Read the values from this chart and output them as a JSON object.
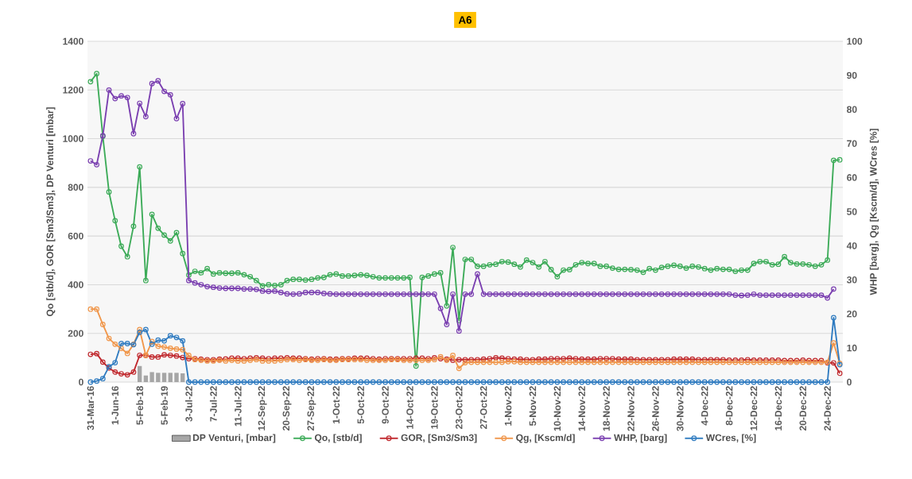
{
  "chart_data": {
    "type": "line",
    "title": "A6",
    "ylabel": "Qo [stb/d], GOR [Sm3/Sm3], DP Venturi [mbar]",
    "y2label": "WHP [barg], Qg [Kscm/d], WCres [%]",
    "categories": [
      "31-Mar-16",
      null,
      null,
      null,
      "1-Jun-16",
      null,
      null,
      null,
      "5-Feb-18",
      null,
      null,
      null,
      "5-Feb-19",
      null,
      null,
      null,
      "3-Jul-22",
      null,
      null,
      null,
      "7-Jul-22",
      null,
      null,
      null,
      "11-Jul-22",
      null,
      null,
      null,
      "12-Sep-22",
      null,
      null,
      null,
      "20-Sep-22",
      null,
      null,
      null,
      "27-Sep-22",
      null,
      null,
      null,
      "1-Oct-22",
      null,
      null,
      null,
      "5-Oct-22",
      null,
      null,
      null,
      "9-Oct-22",
      null,
      null,
      null,
      "14-Oct-22",
      null,
      null,
      null,
      "19-Oct-22",
      null,
      null,
      null,
      "23-Oct-22",
      null,
      null,
      null,
      "27-Oct-22",
      null,
      null,
      null,
      "1-Nov-22",
      null,
      null,
      null,
      "5-Nov-22",
      null,
      null,
      null,
      "10-Nov-22",
      null,
      null,
      null,
      "14-Nov-22",
      null,
      null,
      null,
      "18-Nov-22",
      null,
      null,
      null,
      "22-Nov-22",
      null,
      null,
      null,
      "26-Nov-22",
      null,
      null,
      null,
      "30-Nov-22",
      null,
      null,
      null,
      "4-Dec-22",
      null,
      null,
      null,
      "8-Dec-22",
      null,
      null,
      null,
      "12-Dec-22",
      null,
      null,
      null,
      "16-Dec-22",
      null,
      null,
      null,
      "20-Dec-22",
      null,
      null,
      null,
      "24-Dec-22",
      null,
      null
    ],
    "series": [
      {
        "name": "DP Venturi, [mbar]",
        "type": "bar",
        "color": "#a6a6a6",
        "values": [
          null,
          null,
          null,
          null,
          null,
          null,
          null,
          null,
          66,
          27,
          41,
          38,
          38,
          38,
          38,
          36,
          null,
          null,
          null,
          null,
          null,
          null,
          null,
          null,
          null,
          null,
          null,
          null,
          null,
          null,
          null,
          null,
          null,
          null,
          null,
          null,
          null,
          null,
          null,
          null,
          null,
          null,
          null,
          null,
          null,
          null,
          null,
          null,
          null,
          null,
          null,
          null,
          null,
          null,
          null,
          null,
          null,
          null,
          null,
          null,
          null,
          null,
          null,
          null,
          null,
          null,
          null,
          null,
          null,
          null,
          null,
          null,
          null,
          null,
          null,
          null,
          null,
          null,
          null,
          null,
          null,
          null,
          null,
          null,
          null,
          null,
          null,
          null,
          null,
          null,
          null,
          null,
          null,
          null,
          null,
          null,
          null,
          null,
          null,
          null,
          null,
          null,
          null,
          null,
          null,
          null,
          null,
          null,
          null,
          null,
          null,
          null,
          null,
          null,
          null,
          null,
          null,
          null,
          null,
          null,
          null,
          null,
          null
        ]
      },
      {
        "name": "Qo, [stb/d]",
        "color": "#3cab58",
        "values": [
          1234,
          1267,
          1010,
          781,
          663,
          558,
          515,
          640,
          884,
          417,
          689,
          632,
          604,
          580,
          614,
          528,
          440,
          455,
          449,
          466,
          444,
          449,
          447,
          447,
          449,
          441,
          433,
          417,
          395,
          400,
          397,
          400,
          417,
          422,
          422,
          419,
          422,
          428,
          430,
          441,
          444,
          436,
          436,
          438,
          441,
          438,
          433,
          428,
          428,
          428,
          428,
          428,
          430,
          66,
          430,
          436,
          444,
          449,
          313,
          553,
          253,
          504,
          504,
          476,
          476,
          482,
          484,
          495,
          493,
          484,
          473,
          501,
          491,
          473,
          495,
          462,
          433,
          460,
          462,
          482,
          491,
          487,
          487,
          476,
          476,
          468,
          463,
          463,
          462,
          460,
          451,
          466,
          460,
          471,
          476,
          480,
          476,
          468,
          476,
          473,
          466,
          460,
          466,
          463,
          463,
          455,
          460,
          460,
          487,
          495,
          495,
          482,
          484,
          515,
          491,
          485,
          485,
          482,
          476,
          482,
          501,
          911,
          913
        ]
      },
      {
        "name": "GOR, [Sm3/Sm3]",
        "color": "#c0282d",
        "values": [
          114,
          117,
          82,
          58,
          41,
          34,
          30,
          41,
          110,
          110,
          103,
          103,
          112,
          110,
          107,
          101,
          96,
          96,
          94,
          92,
          92,
          94,
          95,
          98,
          98,
          96,
          98,
          100,
          98,
          96,
          98,
          98,
          100,
          98,
          98,
          96,
          94,
          96,
          96,
          94,
          94,
          96,
          96,
          98,
          98,
          98,
          96,
          94,
          96,
          96,
          96,
          96,
          96,
          98,
          98,
          96,
          100,
          96,
          94,
          90,
          92,
          92,
          92,
          92,
          94,
          96,
          100,
          98,
          96,
          94,
          94,
          92,
          92,
          94,
          94,
          96,
          96,
          96,
          98,
          96,
          94,
          94,
          94,
          96,
          96,
          96,
          94,
          94,
          94,
          92,
          92,
          92,
          92,
          92,
          92,
          94,
          94,
          94,
          94,
          92,
          92,
          92,
          92,
          92,
          90,
          90,
          90,
          92,
          90,
          90,
          90,
          90,
          90,
          88,
          88,
          88,
          90,
          88,
          88,
          88,
          79,
          79,
          36
        ]
      },
      {
        "name": "Qg, [Kscm/d]",
        "axis": "y2",
        "color": "#f0964a",
        "values": [
          21.4,
          21.4,
          16.9,
          12.8,
          11.1,
          9.9,
          8.4,
          11.1,
          15.4,
          7.8,
          11.9,
          10.5,
          10.3,
          9.9,
          9.7,
          9.5,
          7.8,
          6.6,
          6.4,
          6.2,
          6.2,
          6.4,
          6.2,
          6.4,
          6.2,
          6.2,
          6.4,
          6.6,
          6.2,
          6.2,
          6.2,
          6.4,
          6.6,
          6.6,
          6.4,
          6.6,
          6.4,
          6.4,
          6.6,
          6.4,
          6.4,
          6.6,
          6.6,
          6.6,
          6.6,
          6.4,
          6.4,
          6.4,
          6.4,
          6.6,
          6.6,
          6.4,
          6.4,
          6.4,
          6.4,
          6.4,
          6.6,
          7.4,
          6.4,
          7.8,
          4.0,
          5.7,
          5.8,
          5.8,
          5.8,
          5.8,
          5.8,
          5.8,
          6.0,
          6.0,
          5.8,
          5.8,
          5.8,
          5.8,
          5.8,
          5.8,
          5.8,
          5.8,
          5.8,
          5.8,
          5.8,
          5.8,
          5.8,
          5.8,
          5.8,
          5.8,
          5.8,
          5.8,
          5.8,
          5.8,
          5.8,
          5.8,
          5.8,
          5.8,
          5.8,
          5.8,
          5.8,
          5.8,
          5.8,
          5.8,
          5.8,
          5.8,
          5.8,
          5.8,
          5.8,
          5.8,
          5.8,
          5.8,
          5.8,
          5.8,
          5.8,
          5.8,
          5.8,
          5.8,
          5.8,
          5.8,
          5.8,
          5.8,
          5.8,
          5.8,
          5.8,
          11.5,
          5.5
        ]
      },
      {
        "name": "WHP, [barg]",
        "axis": "y2",
        "color": "#7a3fb0",
        "values": [
          64.9,
          63.8,
          72.3,
          85.7,
          83.2,
          84.0,
          83.5,
          72.9,
          81.8,
          77.9,
          87.6,
          88.4,
          85.3,
          84.3,
          77.3,
          81.7,
          29.8,
          29.1,
          28.6,
          28.0,
          27.8,
          27.6,
          27.5,
          27.5,
          27.5,
          27.3,
          27.3,
          27.2,
          26.7,
          26.6,
          26.7,
          26.3,
          25.9,
          25.8,
          25.9,
          26.3,
          26.3,
          26.3,
          26.0,
          25.9,
          25.8,
          25.8,
          25.8,
          25.8,
          25.8,
          25.8,
          25.8,
          25.8,
          25.8,
          25.8,
          25.8,
          25.8,
          25.8,
          25.8,
          25.8,
          25.8,
          25.8,
          21.6,
          16.9,
          25.8,
          15.0,
          25.8,
          25.8,
          31.7,
          25.8,
          25.8,
          25.8,
          25.8,
          25.8,
          25.8,
          25.8,
          25.8,
          25.8,
          25.8,
          25.8,
          25.8,
          25.8,
          25.8,
          25.8,
          25.8,
          25.8,
          25.8,
          25.8,
          25.8,
          25.8,
          25.8,
          25.8,
          25.8,
          25.8,
          25.8,
          25.8,
          25.8,
          25.8,
          25.8,
          25.8,
          25.8,
          25.8,
          25.8,
          25.8,
          25.8,
          25.8,
          25.8,
          25.8,
          25.8,
          25.8,
          25.5,
          25.4,
          25.5,
          25.8,
          25.5,
          25.5,
          25.5,
          25.5,
          25.5,
          25.5,
          25.5,
          25.5,
          25.5,
          25.5,
          25.5,
          24.7,
          27.3,
          null
        ]
      },
      {
        "name": "WCres, [%]",
        "axis": "y2",
        "color": "#2f7bc0",
        "values": [
          0,
          0.3,
          1.0,
          4.5,
          5.7,
          11.3,
          11.3,
          11.0,
          14.6,
          15.4,
          11.1,
          12.3,
          12.1,
          13.6,
          13.1,
          12.1,
          0,
          0,
          0,
          0,
          0,
          0,
          0,
          0,
          0,
          0,
          0,
          0,
          0,
          0,
          0,
          0,
          0,
          0,
          0,
          0,
          0,
          0,
          0,
          0,
          0,
          0,
          0,
          0,
          0,
          0,
          0,
          0,
          0,
          0,
          0,
          0,
          0,
          0,
          0,
          0,
          0,
          0,
          0,
          0,
          0,
          0,
          0,
          0,
          0,
          0,
          0,
          0,
          0,
          0,
          0,
          0,
          0,
          0,
          0,
          0,
          0,
          0,
          0,
          0,
          0,
          0,
          0,
          0,
          0,
          0,
          0,
          0,
          0,
          0,
          0,
          0,
          0,
          0,
          0,
          0,
          0,
          0,
          0,
          0,
          0,
          0,
          0,
          0,
          0,
          0,
          0,
          0,
          0,
          0,
          0,
          0,
          0,
          0,
          0,
          0,
          0,
          0,
          0,
          0,
          0,
          18.9,
          5.1
        ]
      }
    ],
    "ylim": [
      0,
      1400
    ],
    "yticks": [
      0,
      200,
      400,
      600,
      800,
      1000,
      1200,
      1400
    ],
    "y2lim": [
      0,
      100
    ],
    "y2ticks": [
      0,
      10,
      20,
      30,
      40,
      50,
      60,
      70,
      80,
      90,
      100
    ],
    "grid": "y",
    "legend": "bottom",
    "marker": "circle",
    "line_style": "solid"
  }
}
